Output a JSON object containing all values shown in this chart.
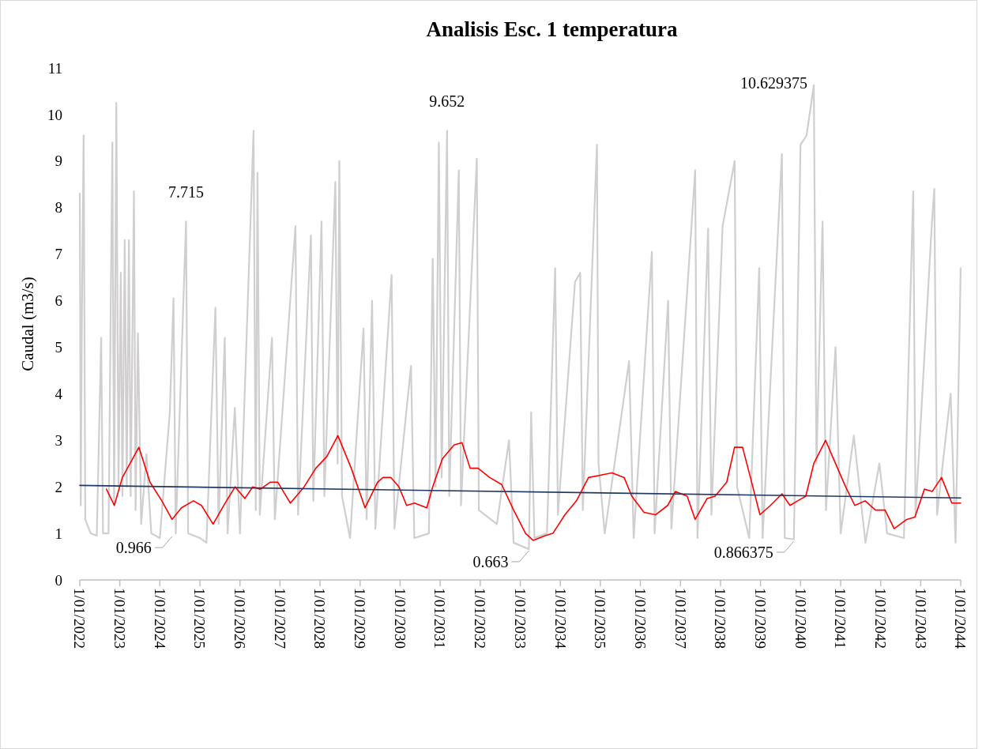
{
  "chart_data": {
    "type": "line",
    "title": "Analisis Esc. 1 temperatura",
    "ylabel": "Caudal (m3/s)",
    "xlim": [
      "2022-01-01",
      "2044-01-01"
    ],
    "ylim": [
      0,
      11
    ],
    "yticks": [
      0,
      1,
      2,
      3,
      4,
      5,
      6,
      7,
      8,
      9,
      10,
      11
    ],
    "xticks": [
      {
        "value": "2022-01-01",
        "label": "1/01/2022"
      },
      {
        "value": "2023-01-01",
        "label": "1/01/2023"
      },
      {
        "value": "2024-01-01",
        "label": "1/01/2024"
      },
      {
        "value": "2025-01-01",
        "label": "1/01/2025"
      },
      {
        "value": "2026-01-01",
        "label": "1/01/2026"
      },
      {
        "value": "2027-01-01",
        "label": "1/01/2027"
      },
      {
        "value": "2028-01-01",
        "label": "1/01/2028"
      },
      {
        "value": "2029-01-01",
        "label": "1/01/2029"
      },
      {
        "value": "2030-01-01",
        "label": "1/01/2030"
      },
      {
        "value": "2031-01-01",
        "label": "1/01/2031"
      },
      {
        "value": "2032-01-01",
        "label": "1/01/2032"
      },
      {
        "value": "2033-01-01",
        "label": "1/01/2033"
      },
      {
        "value": "2034-01-01",
        "label": "1/01/2034"
      },
      {
        "value": "2035-01-01",
        "label": "1/01/2035"
      },
      {
        "value": "2036-01-01",
        "label": "1/01/2036"
      },
      {
        "value": "2037-01-01",
        "label": "1/01/2037"
      },
      {
        "value": "2038-01-01",
        "label": "1/01/2038"
      },
      {
        "value": "2039-01-01",
        "label": "1/01/2039"
      },
      {
        "value": "2040-01-01",
        "label": "1/01/2040"
      },
      {
        "value": "2041-01-01",
        "label": "1/01/2041"
      },
      {
        "value": "2042-01-01",
        "label": "1/01/2042"
      },
      {
        "value": "2043-01-01",
        "label": "1/01/2043"
      },
      {
        "value": "2044-01-01",
        "label": "1/01/2044"
      }
    ],
    "grid": false,
    "marker": "none",
    "line_style": "solid",
    "series": [
      {
        "color": "#d0cece",
        "x": [
          "2022-01-01",
          "2022-01-10",
          "2022-01-20",
          "2022-02-05",
          "2022-02-20",
          "2022-04-10",
          "2022-06-05",
          "2022-07-15",
          "2022-08-01",
          "2022-09-20",
          "2022-10-25",
          "2022-11-10",
          "2022-11-30",
          "2022-12-20",
          "2023-01-10",
          "2023-01-25",
          "2023-02-15",
          "2023-03-05",
          "2023-03-25",
          "2023-04-10",
          "2023-05-10",
          "2023-05-25",
          "2023-06-15",
          "2023-07-15",
          "2023-09-01",
          "2023-10-15",
          "2024-01-01",
          "2024-04-01",
          "2024-05-05",
          "2024-05-25",
          "2024-08-27",
          "2024-09-15",
          "2025-01-01",
          "2025-03-01",
          "2025-05-22",
          "2025-06-20",
          "2025-08-15",
          "2025-09-10",
          "2025-11-15",
          "2026-01-01",
          "2026-05-05",
          "2026-05-25",
          "2026-06-10",
          "2026-07-01",
          "2026-10-20",
          "2026-11-15",
          "2027-05-22",
          "2027-06-15",
          "2027-10-10",
          "2027-11-01",
          "2028-01-15",
          "2028-02-10",
          "2028-05-20",
          "2028-06-10",
          "2028-06-25",
          "2028-07-20",
          "2028-10-01",
          "2029-02-01",
          "2029-03-01",
          "2029-04-20",
          "2029-05-20",
          "2029-10-15",
          "2029-11-10",
          "2030-04-10",
          "2030-05-10",
          "2030-09-20",
          "2030-10-25",
          "2030-11-20",
          "2030-12-20",
          "2031-01-15",
          "2031-03-05",
          "2031-03-25",
          "2031-06-20",
          "2031-07-10",
          "2031-12-01",
          "2031-12-20",
          "2032-06-01",
          "2032-09-20",
          "2032-11-01",
          "2033-03-20",
          "2033-04-10",
          "2033-05-10",
          "2033-09-01",
          "2033-11-15",
          "2033-12-10",
          "2034-05-15",
          "2034-07-01",
          "2034-07-25",
          "2034-12-01",
          "2034-12-15",
          "2035-02-10",
          "2035-09-20",
          "2035-11-01",
          "2036-04-15",
          "2036-05-10",
          "2036-09-10",
          "2036-10-10",
          "2037-05-15",
          "2037-06-05",
          "2037-09-10",
          "2037-10-10",
          "2038-01-20",
          "2038-05-10",
          "2038-06-01",
          "2038-09-20",
          "2038-12-20",
          "2039-01-20",
          "2039-07-15",
          "2039-08-10",
          "2039-11-01",
          "2040-01-01",
          "2040-02-25",
          "2040-05-01",
          "2040-05-25",
          "2040-07-20",
          "2040-08-20",
          "2040-11-15",
          "2041-01-01",
          "2041-05-01",
          "2041-08-15",
          "2041-12-20",
          "2042-03-01",
          "2042-08-01",
          "2042-10-25",
          "2042-11-15",
          "2043-04-10",
          "2043-05-05",
          "2043-05-30",
          "2043-10-01",
          "2043-11-15",
          "2044-01-01"
        ],
        "values": [
          8.3,
          1.6,
          5.7,
          9.55,
          1.3,
          1.0,
          0.95,
          5.2,
          1.0,
          1.0,
          9.4,
          1.6,
          10.25,
          2.0,
          6.6,
          1.8,
          7.3,
          2.0,
          7.3,
          1.8,
          8.35,
          1.5,
          5.3,
          1.2,
          2.7,
          1.0,
          0.9,
          3.6,
          6.05,
          1.0,
          7.7,
          1.0,
          0.9,
          0.8,
          5.85,
          1.2,
          5.2,
          1.0,
          3.7,
          1.0,
          9.65,
          1.5,
          8.75,
          1.4,
          5.2,
          1.3,
          7.6,
          1.4,
          7.4,
          1.7,
          7.7,
          1.8,
          8.55,
          2.5,
          9.0,
          1.8,
          0.9,
          5.4,
          1.3,
          6.0,
          1.1,
          6.55,
          1.1,
          4.6,
          0.9,
          1.0,
          6.9,
          2.0,
          9.4,
          2.2,
          9.65,
          1.8,
          8.8,
          1.6,
          9.05,
          1.5,
          1.2,
          3.0,
          0.8,
          0.66,
          3.6,
          0.9,
          1.0,
          6.7,
          1.4,
          6.4,
          6.6,
          1.5,
          9.35,
          2.5,
          1.0,
          4.7,
          0.9,
          7.05,
          1.0,
          6.0,
          1.1,
          8.8,
          0.9,
          7.55,
          1.4,
          7.6,
          9.0,
          2.0,
          0.9,
          6.7,
          0.9,
          9.15,
          0.9,
          0.87,
          9.35,
          9.55,
          10.63,
          2.5,
          7.7,
          1.5,
          5.0,
          1.0,
          3.1,
          0.8,
          2.5,
          1.0,
          0.9,
          8.35,
          1.4,
          7.55,
          8.4,
          1.4,
          4.0,
          0.8,
          6.7
        ]
      },
      {
        "color": "#ff0000",
        "x": [
          "2022-09-01",
          "2022-11-12",
          "2023-01-24",
          "2023-04-27",
          "2023-06-24",
          "2023-10-03",
          "2024-01-19",
          "2024-04-21",
          "2024-07-16",
          "2024-11-03",
          "2025-01-15",
          "2025-05-01",
          "2025-08-18",
          "2025-11-18",
          "2026-02-15",
          "2026-04-27",
          "2026-07-06",
          "2026-10-03",
          "2026-12-12",
          "2027-04-06",
          "2027-08-09",
          "2027-11-24",
          "2028-03-03",
          "2028-06-12",
          "2028-10-12",
          "2029-02-15",
          "2029-06-09",
          "2029-07-28",
          "2029-10-09",
          "2029-12-21",
          "2030-03-01",
          "2030-05-12",
          "2030-09-01",
          "2030-10-25",
          "2031-01-21",
          "2031-05-07",
          "2031-07-19",
          "2031-10-01",
          "2031-12-12",
          "2032-03-28",
          "2032-07-15",
          "2032-11-01",
          "2033-02-18",
          "2033-04-28",
          "2033-08-15",
          "2033-10-25",
          "2034-02-12",
          "2034-05-28",
          "2034-09-15",
          "2035-01-01",
          "2035-04-18",
          "2035-08-06",
          "2035-10-15",
          "2036-02-03",
          "2036-05-18",
          "2036-09-06",
          "2036-11-15",
          "2037-03-03",
          "2037-05-15",
          "2037-09-01",
          "2037-11-12",
          "2038-02-27",
          "2038-05-09",
          "2038-07-21",
          "2038-10-01",
          "2038-12-27",
          "2039-04-01",
          "2039-07-16",
          "2039-09-27",
          "2039-12-06",
          "2040-02-18",
          "2040-05-01",
          "2040-08-16",
          "2040-10-28",
          "2041-02-15",
          "2041-05-10",
          "2041-08-12",
          "2041-11-15",
          "2042-02-10",
          "2042-05-04",
          "2042-08-27",
          "2042-11-09",
          "2043-02-04",
          "2043-04-16",
          "2043-07-10",
          "2043-10-12",
          "2044-01-01"
        ],
        "values": [
          1.95,
          1.6,
          2.2,
          2.6,
          2.85,
          2.1,
          1.7,
          1.3,
          1.55,
          1.7,
          1.6,
          1.2,
          1.65,
          2.0,
          1.75,
          2.0,
          1.95,
          2.1,
          2.1,
          1.65,
          2.0,
          2.4,
          2.65,
          3.1,
          2.4,
          1.55,
          2.1,
          2.2,
          2.2,
          2.0,
          1.6,
          1.65,
          1.55,
          2.0,
          2.6,
          2.9,
          2.95,
          2.4,
          2.4,
          2.2,
          2.05,
          1.5,
          1.0,
          0.85,
          0.95,
          1.0,
          1.4,
          1.7,
          2.2,
          2.25,
          2.3,
          2.2,
          1.8,
          1.45,
          1.4,
          1.6,
          1.9,
          1.8,
          1.3,
          1.75,
          1.8,
          2.1,
          2.85,
          2.85,
          2.2,
          1.4,
          1.6,
          1.85,
          1.6,
          1.7,
          1.8,
          2.5,
          3.0,
          2.6,
          2.0,
          1.6,
          1.7,
          1.5,
          1.5,
          1.1,
          1.3,
          1.35,
          1.95,
          1.9,
          2.2,
          1.65,
          1.65
        ]
      },
      {
        "color": "#1f3864",
        "x": [
          "2022-01-01",
          "2044-01-01"
        ],
        "values": [
          2.03,
          1.76
        ]
      }
    ],
    "annotations": [
      {
        "text": "7.715",
        "x": "2024-08-27",
        "y": 7.715
      },
      {
        "text": "9.652",
        "x": "2031-03-05",
        "y": 9.652
      },
      {
        "text": "10.629375",
        "x": "2040-05-01",
        "y": 10.629375
      },
      {
        "text": "0.966",
        "x": "2024-04-21",
        "y": 0.966
      },
      {
        "text": "0.663",
        "x": "2033-03-20",
        "y": 0.663
      },
      {
        "text": "0.866375",
        "x": "2039-11-01",
        "y": 0.866375
      }
    ]
  }
}
